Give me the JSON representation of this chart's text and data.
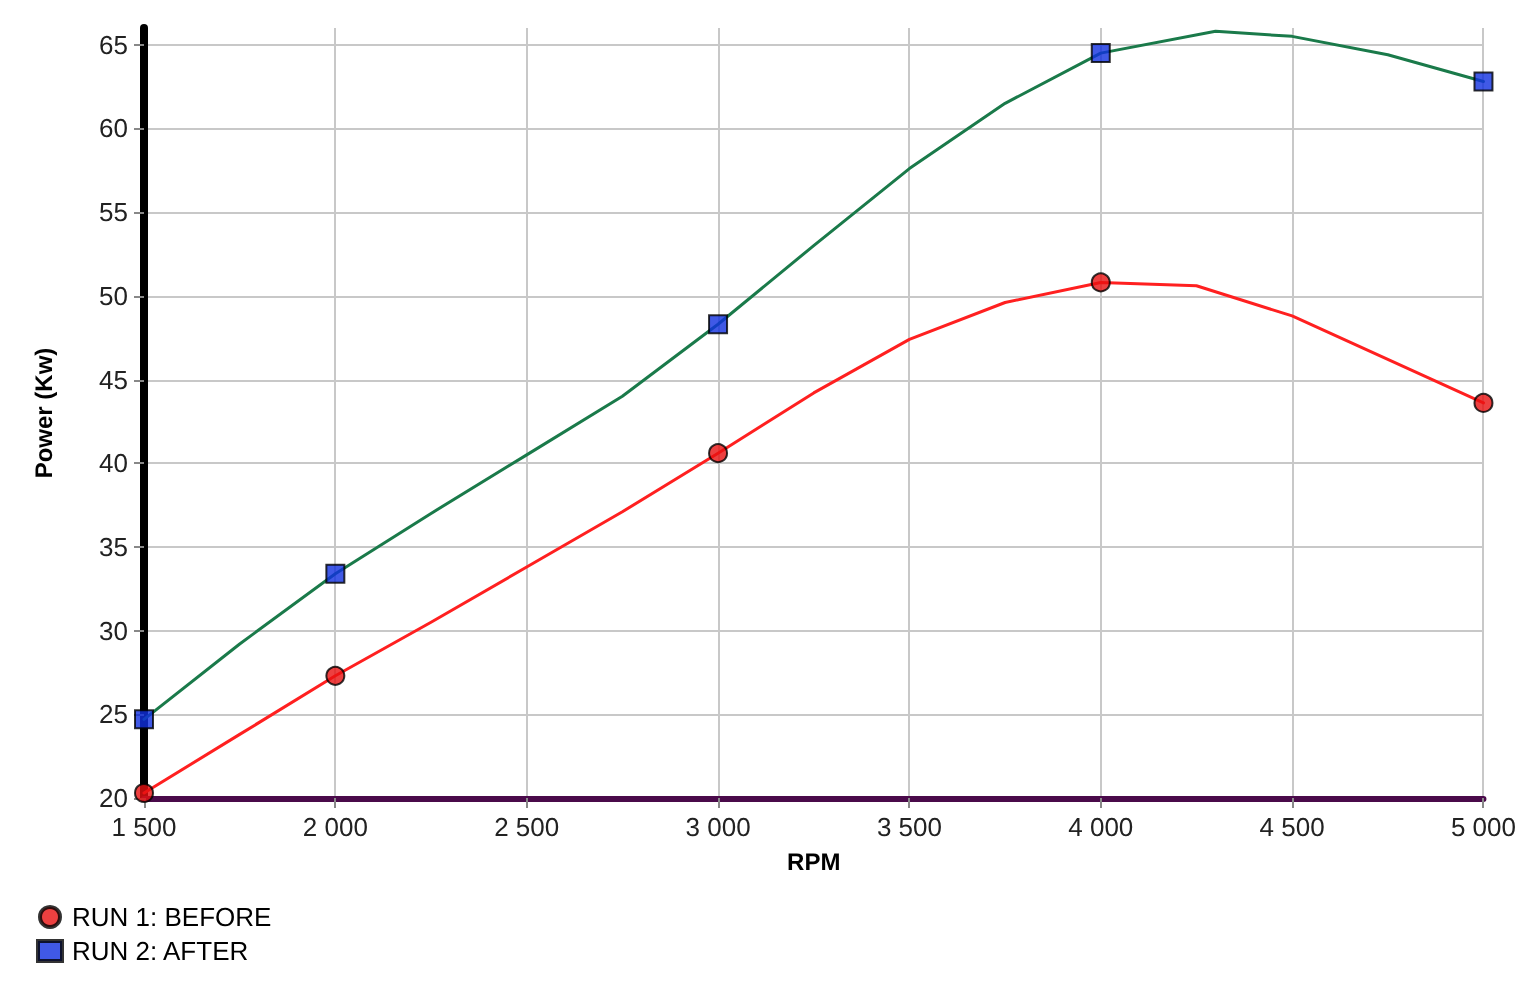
{
  "chart_data": {
    "type": "line",
    "xlabel": "RPM",
    "ylabel": "Power (Kw)",
    "xlim": [
      1500,
      5000
    ],
    "ylim": [
      20,
      66
    ],
    "xticks": [
      {
        "value": 1500,
        "label": "1 500"
      },
      {
        "value": 2000,
        "label": "2 000"
      },
      {
        "value": 2500,
        "label": "2 500"
      },
      {
        "value": 3000,
        "label": "3 000"
      },
      {
        "value": 3500,
        "label": "3 500"
      },
      {
        "value": 4000,
        "label": "4 000"
      },
      {
        "value": 4500,
        "label": "4 500"
      },
      {
        "value": 5000,
        "label": "5 000"
      }
    ],
    "yticks": [
      20,
      25,
      30,
      35,
      40,
      45,
      50,
      55,
      60,
      65
    ],
    "grid": true,
    "legend": "bottom left",
    "line_style": "solid",
    "series": [
      {
        "color": "#ff2020",
        "marker": "none",
        "x": [
          1500,
          1750,
          2000,
          2250,
          2500,
          2750,
          3000,
          3250,
          3500,
          3750,
          4000,
          4250,
          4500,
          4750,
          5000
        ],
        "values": [
          20.3,
          23.8,
          27.3,
          30.5,
          33.8,
          37.1,
          40.6,
          44.2,
          47.4,
          49.6,
          50.8,
          50.6,
          48.8,
          46.2,
          43.6
        ]
      },
      {
        "color": "#1a7a4a",
        "marker": "none",
        "x": [
          1500,
          1750,
          2000,
          2250,
          2500,
          2750,
          3000,
          3250,
          3500,
          3750,
          4000,
          4300,
          4500,
          4750,
          5000
        ],
        "values": [
          24.7,
          29.2,
          33.4,
          37.0,
          40.5,
          44.0,
          48.3,
          53.0,
          57.6,
          61.5,
          64.5,
          65.8,
          65.5,
          64.4,
          62.8
        ]
      },
      {
        "type": "scatter",
        "name": "RUN 1: BEFORE",
        "color": "#e81010",
        "marker": "circle",
        "x": [
          1500,
          2000,
          3000,
          4000,
          5000
        ],
        "values": [
          20.3,
          27.3,
          40.6,
          50.8,
          43.6
        ]
      },
      {
        "type": "scatter",
        "name": "RUN 2: AFTER",
        "color": "#1030e0",
        "marker": "square",
        "x": [
          1500,
          2000,
          3000,
          4000,
          5000
        ],
        "values": [
          24.7,
          33.4,
          48.3,
          64.5,
          62.8
        ]
      }
    ]
  }
}
